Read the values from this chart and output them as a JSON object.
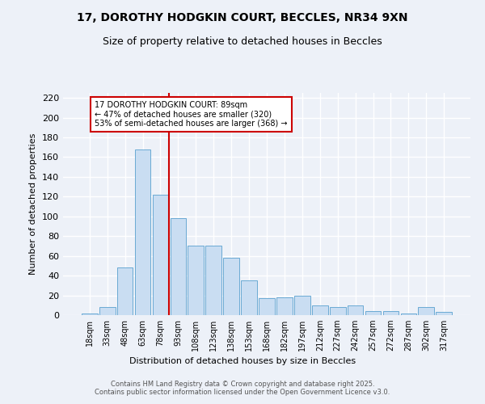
{
  "title_line1": "17, DOROTHY HODGKIN COURT, BECCLES, NR34 9XN",
  "title_line2": "Size of property relative to detached houses in Beccles",
  "xlabel": "Distribution of detached houses by size in Beccles",
  "ylabel": "Number of detached properties",
  "bar_labels": [
    "18sqm",
    "33sqm",
    "48sqm",
    "63sqm",
    "78sqm",
    "93sqm",
    "108sqm",
    "123sqm",
    "138sqm",
    "153sqm",
    "168sqm",
    "182sqm",
    "197sqm",
    "212sqm",
    "227sqm",
    "242sqm",
    "257sqm",
    "272sqm",
    "287sqm",
    "302sqm",
    "317sqm"
  ],
  "bar_values": [
    2,
    8,
    48,
    168,
    122,
    98,
    70,
    70,
    58,
    35,
    17,
    18,
    20,
    10,
    8,
    10,
    4,
    4,
    2,
    8,
    3
  ],
  "bar_color": "#c9ddf2",
  "bar_edge_color": "#6aaad4",
  "vline_x_idx": 4.5,
  "vline_color": "#cc0000",
  "annotation_text": "17 DOROTHY HODGKIN COURT: 89sqm\n← 47% of detached houses are smaller (320)\n53% of semi-detached houses are larger (368) →",
  "annotation_box_color": "#ffffff",
  "annotation_box_edge_color": "#cc0000",
  "ylim": [
    0,
    225
  ],
  "yticks": [
    0,
    20,
    40,
    60,
    80,
    100,
    120,
    140,
    160,
    180,
    200,
    220
  ],
  "bg_color": "#edf1f8",
  "grid_color": "#ffffff",
  "footer_text": "Contains HM Land Registry data © Crown copyright and database right 2025.\nContains public sector information licensed under the Open Government Licence v3.0."
}
